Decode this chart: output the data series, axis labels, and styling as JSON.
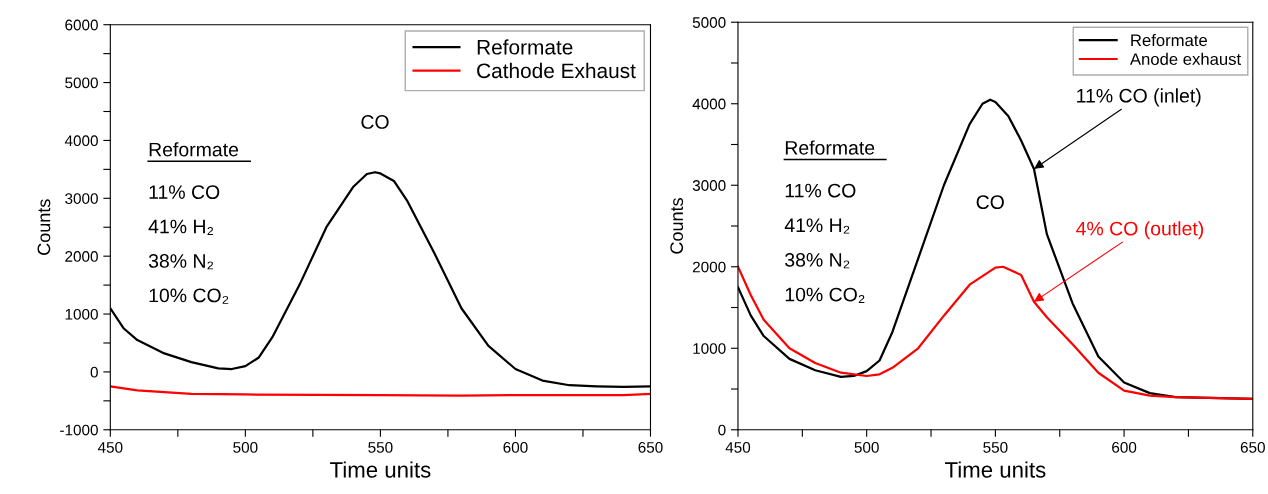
{
  "chart_data": [
    {
      "type": "line",
      "xlabel": "Time units",
      "ylabel": "Counts",
      "xlim": [
        450,
        650
      ],
      "ylim": [
        -1000,
        6000
      ],
      "xticks": [
        450,
        {
          "value": 475,
          "label": null
        },
        500,
        {
          "value": 525,
          "label": null
        },
        550,
        {
          "value": 575,
          "label": null
        },
        600,
        {
          "value": 625,
          "label": null
        },
        650
      ],
      "yticks": [
        -1000,
        {
          "value": -500,
          "label": null
        },
        0,
        {
          "value": 500,
          "label": null
        },
        1000,
        {
          "value": 1500,
          "label": null
        },
        2000,
        {
          "value": 2500,
          "label": null
        },
        3000,
        {
          "value": 3500,
          "label": null
        },
        4000,
        {
          "value": 4500,
          "label": null
        },
        5000,
        {
          "value": 5500,
          "label": null
        },
        6000
      ],
      "legend": "top right",
      "grid": false,
      "marker": "none",
      "line_style": "solid",
      "series": [
        {
          "name": "Reformate",
          "color": "#000000",
          "x": [
            450,
            455,
            460,
            470,
            480,
            490,
            495,
            500,
            505,
            510,
            520,
            530,
            540,
            545,
            548,
            550,
            555,
            560,
            570,
            580,
            590,
            600,
            610,
            620,
            630,
            640,
            650
          ],
          "values": [
            1100,
            750,
            550,
            320,
            170,
            60,
            50,
            100,
            250,
            600,
            1500,
            2500,
            3200,
            3420,
            3450,
            3430,
            3300,
            2950,
            2050,
            1100,
            450,
            50,
            -150,
            -230,
            -250,
            -260,
            -250
          ]
        },
        {
          "name": "Cathode Exhaust",
          "color": "#ff0000",
          "x": [
            450,
            460,
            470,
            480,
            500,
            550,
            580,
            600,
            640,
            650
          ],
          "values": [
            -250,
            -320,
            -350,
            -380,
            -390,
            -400,
            -410,
            -400,
            -400,
            -380
          ]
        }
      ],
      "annotations": [
        "Reformate",
        "11% CO",
        "41% H₂",
        "38% N₂",
        "10% CO₂",
        "CO"
      ]
    },
    {
      "type": "line",
      "xlabel": "Time units",
      "ylabel": "Counts",
      "xlim": [
        450,
        650
      ],
      "ylim": [
        0,
        5000
      ],
      "xticks": [
        450,
        {
          "value": 475,
          "label": null
        },
        500,
        {
          "value": 525,
          "label": null
        },
        550,
        {
          "value": 575,
          "label": null
        },
        600,
        {
          "value": 625,
          "label": null
        },
        650
      ],
      "yticks": [
        0,
        {
          "value": 500,
          "label": null
        },
        1000,
        {
          "value": 1500,
          "label": null
        },
        2000,
        {
          "value": 2500,
          "label": null
        },
        3000,
        {
          "value": 3500,
          "label": null
        },
        4000,
        {
          "value": 4500,
          "label": null
        },
        5000
      ],
      "legend": "top right",
      "grid": false,
      "marker": "none",
      "line_style": "solid",
      "series": [
        {
          "name": "Reformate",
          "color": "#000000",
          "x": [
            450,
            455,
            460,
            470,
            480,
            490,
            495,
            500,
            505,
            510,
            520,
            530,
            540,
            545,
            548,
            550,
            555,
            560,
            565,
            570,
            580,
            590,
            600,
            610,
            620,
            650
          ],
          "values": [
            1750,
            1400,
            1150,
            870,
            730,
            650,
            660,
            720,
            850,
            1200,
            2100,
            3000,
            3750,
            4000,
            4050,
            4020,
            3850,
            3550,
            3200,
            2400,
            1550,
            900,
            580,
            450,
            400,
            380
          ]
        },
        {
          "name": "Anode exhaust",
          "color": "#ff0000",
          "x": [
            450,
            455,
            460,
            470,
            480,
            490,
            500,
            505,
            510,
            520,
            530,
            540,
            550,
            553,
            560,
            565,
            570,
            580,
            590,
            600,
            610,
            620,
            650
          ],
          "values": [
            2000,
            1650,
            1350,
            1000,
            820,
            700,
            660,
            680,
            760,
            1000,
            1400,
            1780,
            1990,
            2000,
            1900,
            1570,
            1380,
            1050,
            700,
            480,
            420,
            400,
            380
          ]
        }
      ],
      "annotations": [
        "Reformate",
        "11% CO",
        "41% H₂",
        "38% N₂",
        "10% CO₂",
        "CO",
        {
          "text": "11% CO (inlet)",
          "x": 565,
          "y": 3200
        },
        {
          "text": "4% CO (outlet)",
          "x": 565,
          "y": 1570
        }
      ]
    }
  ]
}
